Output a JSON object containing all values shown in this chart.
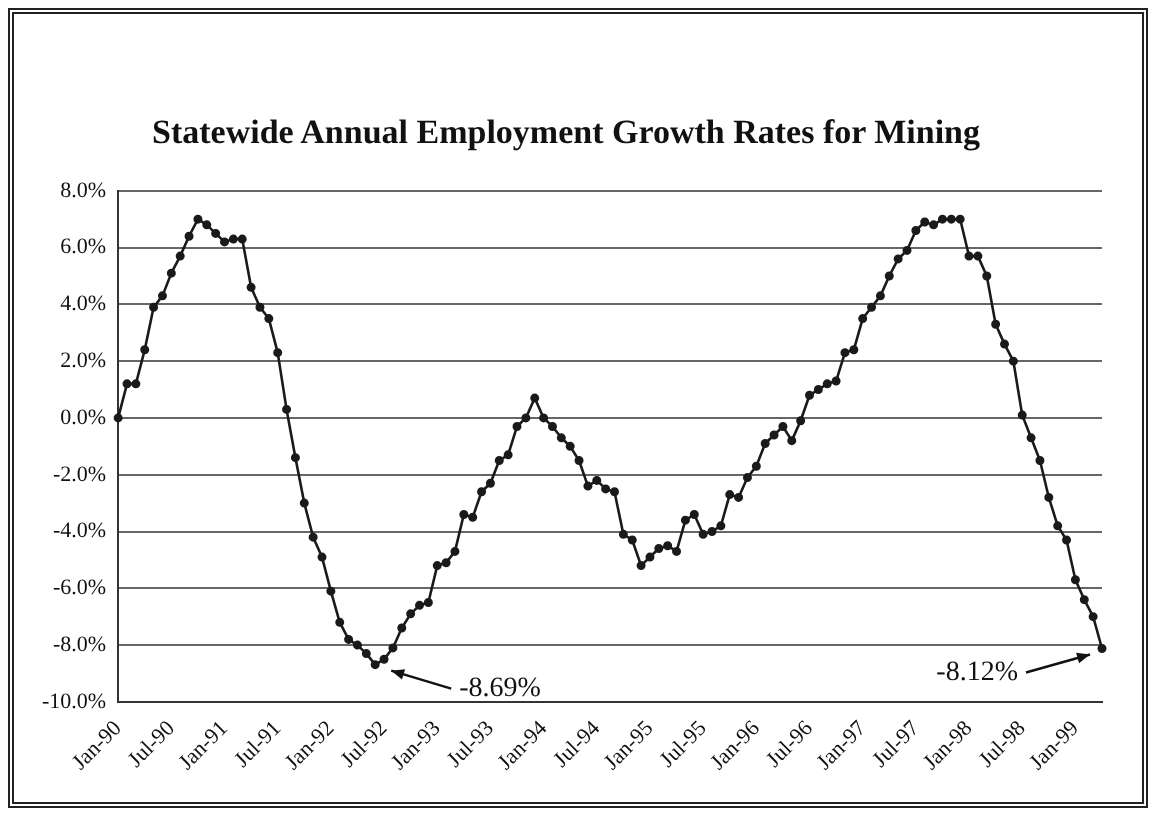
{
  "chart_data": {
    "type": "line",
    "title": "Statewide Annual Employment Growth Rates for Mining",
    "categories": [
      "Jan-90",
      null,
      null,
      null,
      null,
      null,
      "Jul-90",
      null,
      null,
      null,
      null,
      null,
      "Jan-91",
      null,
      null,
      null,
      null,
      null,
      "Jul-91",
      null,
      null,
      null,
      null,
      null,
      "Jan-92",
      null,
      null,
      null,
      null,
      null,
      "Jul-92",
      null,
      null,
      null,
      null,
      null,
      "Jan-93",
      null,
      null,
      null,
      null,
      null,
      "Jul-93",
      null,
      null,
      null,
      null,
      null,
      "Jan-94",
      null,
      null,
      null,
      null,
      null,
      "Jul-94",
      null,
      null,
      null,
      null,
      null,
      "Jan-95",
      null,
      null,
      null,
      null,
      null,
      "Jul-95",
      null,
      null,
      null,
      null,
      null,
      "Jan-96",
      null,
      null,
      null,
      null,
      null,
      "Jul-96",
      null,
      null,
      null,
      null,
      null,
      "Jan-97",
      null,
      null,
      null,
      null,
      null,
      "Jul-97",
      null,
      null,
      null,
      null,
      null,
      "Jan-98",
      null,
      null,
      null,
      null,
      null,
      "Jul-98",
      null,
      null,
      null,
      null,
      null,
      "Jan-99",
      null,
      null,
      null
    ],
    "series": [
      {
        "color": "#1a1a1a",
        "values": [
          0.0,
          1.2,
          1.2,
          2.4,
          3.9,
          4.3,
          5.1,
          5.7,
          6.4,
          7.0,
          6.8,
          6.5,
          6.2,
          6.3,
          6.3,
          4.6,
          3.9,
          3.5,
          2.3,
          0.3,
          -1.4,
          -3.0,
          -4.2,
          -4.9,
          -6.1,
          -7.2,
          -7.8,
          -8.0,
          -8.3,
          -8.69,
          -8.5,
          -8.1,
          -7.4,
          -6.9,
          -6.6,
          -6.5,
          -5.2,
          -5.1,
          -4.7,
          -3.4,
          -3.5,
          -2.6,
          -2.3,
          -1.5,
          -1.3,
          -0.3,
          0.0,
          0.7,
          0.0,
          -0.3,
          -0.7,
          -1.0,
          -1.5,
          -2.4,
          -2.2,
          -2.5,
          -2.6,
          -4.1,
          -4.3,
          -5.2,
          -4.9,
          -4.6,
          -4.5,
          -4.7,
          -3.6,
          -3.4,
          -4.1,
          -4.0,
          -3.8,
          -2.7,
          -2.8,
          -2.1,
          -1.7,
          -0.9,
          -0.6,
          -0.3,
          -0.8,
          -0.1,
          0.8,
          1.0,
          1.2,
          1.3,
          2.3,
          2.4,
          3.5,
          3.9,
          4.3,
          5.0,
          5.6,
          5.9,
          6.6,
          6.9,
          6.8,
          7.0,
          7.0,
          7.0,
          5.7,
          5.7,
          5.0,
          3.3,
          2.6,
          2.0,
          0.1,
          -0.7,
          -1.5,
          -2.8,
          -3.8,
          -4.3,
          -5.7,
          -6.4,
          -7.0,
          -8.12
        ]
      }
    ],
    "ylim": [
      -10,
      8
    ],
    "yticks": [
      {
        "value": -10,
        "label": "-10.0%"
      },
      {
        "value": -8,
        "label": "-8.0%"
      },
      {
        "value": -6,
        "label": "-6.0%"
      },
      {
        "value": -4,
        "label": "-4.0%"
      },
      {
        "value": -2,
        "label": "-2.0%"
      },
      {
        "value": 0,
        "label": "0.0%"
      },
      {
        "value": 2,
        "label": "2.0%"
      },
      {
        "value": 4,
        "label": "4.0%"
      },
      {
        "value": 6,
        "label": "6.0%"
      },
      {
        "value": 8,
        "label": "8.0%"
      }
    ],
    "grid": "y",
    "legend": false,
    "marker": "circle",
    "line_style": "solid",
    "annotations": [
      "-8.69%",
      "-8.12%"
    ]
  }
}
